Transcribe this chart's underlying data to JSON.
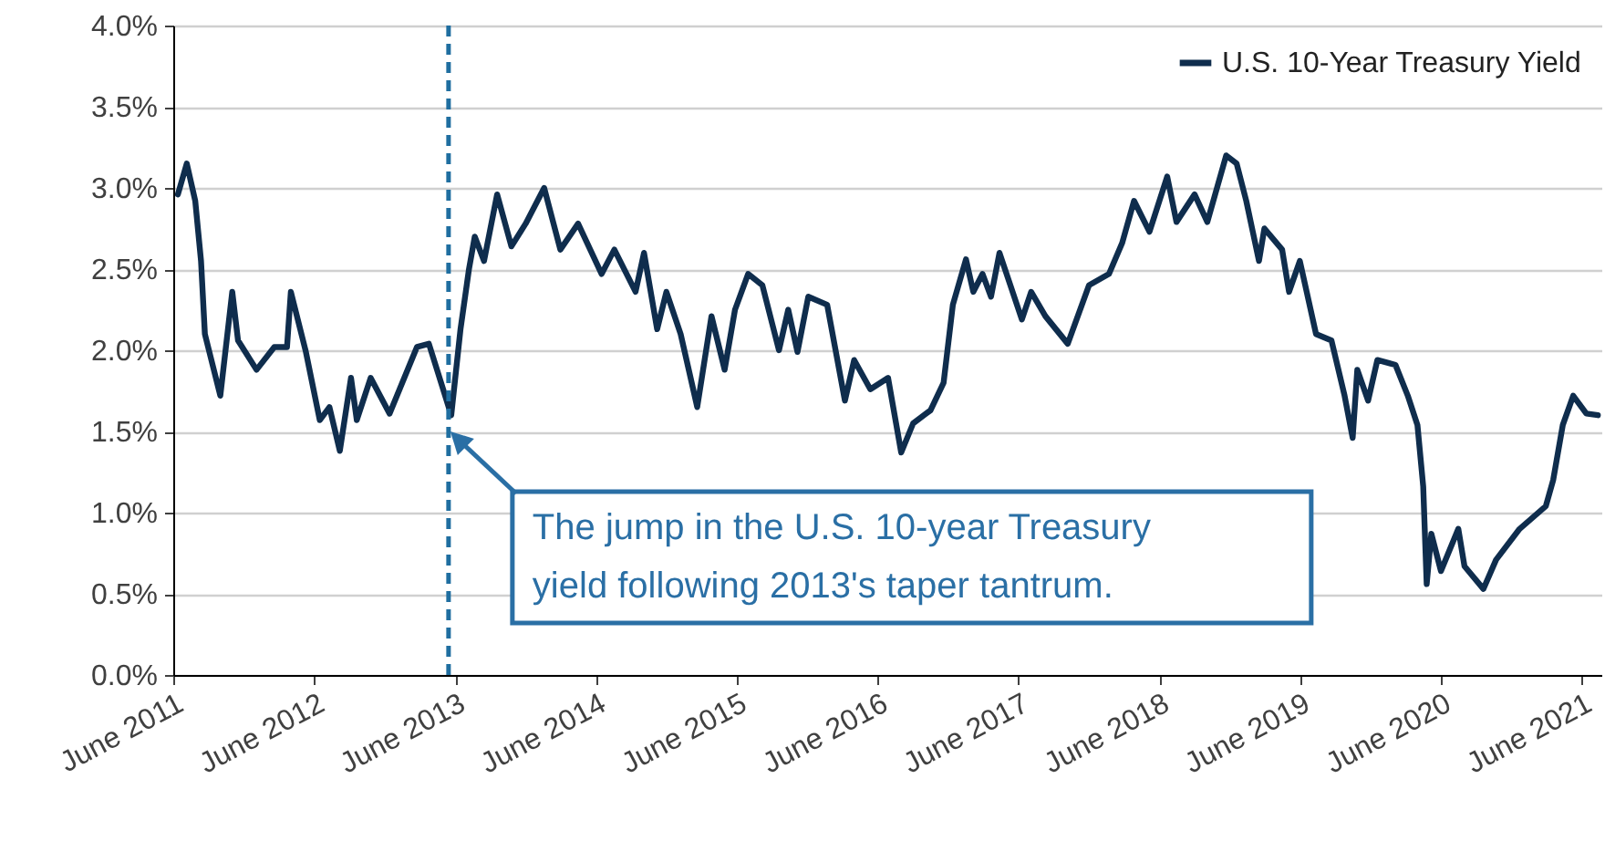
{
  "chart_data": {
    "type": "line",
    "x": [
      "2011-06-13",
      "2011-07-06",
      "2011-07-28",
      "2011-08-12",
      "2011-08-22",
      "2011-10-01",
      "2011-11-01",
      "2011-11-16",
      "2012-01-03",
      "2012-02-18",
      "2012-03-22",
      "2012-04-01",
      "2012-05-10",
      "2012-06-15",
      "2012-07-10",
      "2012-08-06",
      "2012-09-04",
      "2012-09-19",
      "2012-10-25",
      "2012-12-13",
      "2013-02-22",
      "2013-03-25",
      "2013-05-22",
      "2013-06-15",
      "2013-07-07",
      "2013-07-22",
      "2013-08-15",
      "2013-09-18",
      "2013-10-25",
      "2013-12-01",
      "2014-01-18",
      "2014-03-01",
      "2014-04-16",
      "2014-06-16",
      "2014-07-19",
      "2014-09-12",
      "2014-10-04",
      "2014-11-07",
      "2014-12-01",
      "2015-01-07",
      "2015-02-19",
      "2015-03-28",
      "2015-05-01",
      "2015-05-28",
      "2015-07-01",
      "2015-08-07",
      "2015-09-19",
      "2015-10-13",
      "2015-11-06",
      "2015-12-04",
      "2016-01-22",
      "2016-03-08",
      "2016-04-01",
      "2016-05-13",
      "2016-06-28",
      "2016-08-01",
      "2016-09-01",
      "2016-10-16",
      "2016-11-19",
      "2016-12-13",
      "2017-01-16",
      "2017-02-04",
      "2017-02-28",
      "2017-03-22",
      "2017-04-13",
      "2017-06-10",
      "2017-07-04",
      "2017-08-10",
      "2017-10-07",
      "2017-12-01",
      "2018-01-22",
      "2018-02-25",
      "2018-03-28",
      "2018-05-07",
      "2018-06-22",
      "2018-07-16",
      "2018-09-01",
      "2018-10-04",
      "2018-11-22",
      "2018-12-19",
      "2019-01-13",
      "2019-02-15",
      "2019-03-01",
      "2019-04-16",
      "2019-05-04",
      "2019-06-01",
      "2019-07-13",
      "2019-08-22",
      "2019-09-25",
      "2019-10-16",
      "2019-10-28",
      "2019-11-25",
      "2019-12-19",
      "2020-02-04",
      "2020-03-07",
      "2020-04-01",
      "2020-04-16",
      "2020-04-25",
      "2020-05-07",
      "2020-06-01",
      "2020-07-16",
      "2020-08-01",
      "2020-09-19",
      "2020-10-22",
      "2020-12-22",
      "2021-02-28",
      "2021-03-19",
      "2021-04-13",
      "2021-05-10",
      "2021-06-13",
      "2021-07-13"
    ],
    "series": [
      {
        "name": "U.S. 10-Year Treasury Yield",
        "color": "#0f2d4d",
        "values": [
          2.96,
          3.15,
          2.92,
          2.55,
          2.1,
          1.72,
          2.36,
          2.06,
          1.88,
          2.02,
          2.02,
          2.36,
          1.99,
          1.57,
          1.65,
          1.38,
          1.83,
          1.57,
          1.83,
          1.61,
          2.02,
          2.04,
          1.6,
          2.13,
          2.5,
          2.7,
          2.55,
          2.96,
          2.64,
          2.78,
          3.0,
          2.62,
          2.78,
          2.47,
          2.62,
          2.36,
          2.6,
          2.13,
          2.36,
          2.1,
          1.65,
          2.21,
          1.88,
          2.25,
          2.47,
          2.4,
          2.0,
          2.25,
          1.99,
          2.33,
          2.28,
          1.69,
          1.94,
          1.76,
          1.83,
          1.37,
          1.55,
          1.63,
          1.8,
          2.28,
          2.56,
          2.36,
          2.47,
          2.33,
          2.6,
          2.19,
          2.36,
          2.21,
          2.04,
          2.4,
          2.47,
          2.66,
          2.92,
          2.73,
          3.07,
          2.79,
          2.96,
          2.79,
          3.2,
          3.15,
          2.92,
          2.55,
          2.75,
          2.62,
          2.36,
          2.55,
          2.1,
          2.06,
          1.72,
          1.46,
          1.88,
          1.69,
          1.94,
          1.91,
          1.72,
          1.54,
          1.16,
          0.56,
          0.87,
          0.64,
          0.9,
          0.67,
          0.53,
          0.71,
          0.9,
          1.04,
          1.2,
          1.54,
          1.72,
          1.61,
          1.6
        ]
      }
    ],
    "line_style": "solid",
    "xlim": [
      "2011-06-01",
      "2021-07-22"
    ],
    "xticks": [
      {
        "value": "2011-06",
        "label": "June 2011"
      },
      {
        "value": "2012-06",
        "label": "June 2012"
      },
      {
        "value": "2013-06",
        "label": "June 2013"
      },
      {
        "value": "2014-06",
        "label": "June 2014"
      },
      {
        "value": "2015-06",
        "label": "June 2015"
      },
      {
        "value": "2016-06",
        "label": "June 2016"
      },
      {
        "value": "2017-06",
        "label": "June 2017"
      },
      {
        "value": "2018-06",
        "label": "June 2018"
      },
      {
        "value": "2019-06",
        "label": "June 2019"
      },
      {
        "value": "2020-06",
        "label": "June 2020"
      },
      {
        "value": "2021-06",
        "label": "June 2021"
      }
    ],
    "ylim": [
      0,
      4
    ],
    "yticks": [
      {
        "value": 0,
        "label": "0.0%"
      },
      {
        "value": 0.5,
        "label": "0.5%"
      },
      {
        "value": 1,
        "label": "1.0%"
      },
      {
        "value": 1.5,
        "label": "1.5%"
      },
      {
        "value": 2,
        "label": "2.0%"
      },
      {
        "value": 2.5,
        "label": "2.5%"
      },
      {
        "value": 3,
        "label": "3.0%"
      },
      {
        "value": 3.5,
        "label": "3.5%"
      },
      {
        "value": 4,
        "label": "4.0%"
      }
    ],
    "grid": "y",
    "legend": "top right",
    "ref_lines": [
      {
        "axis": "x",
        "value": "2013-05-15",
        "color": "#1f6ea0",
        "line_style": "dashed"
      }
    ],
    "annotations": [
      {
        "text": "The jump in the U.S. 10-year Treasury yield following 2013's taper tantrum.",
        "x": "2013-05-15",
        "y": 1.5
      }
    ]
  }
}
